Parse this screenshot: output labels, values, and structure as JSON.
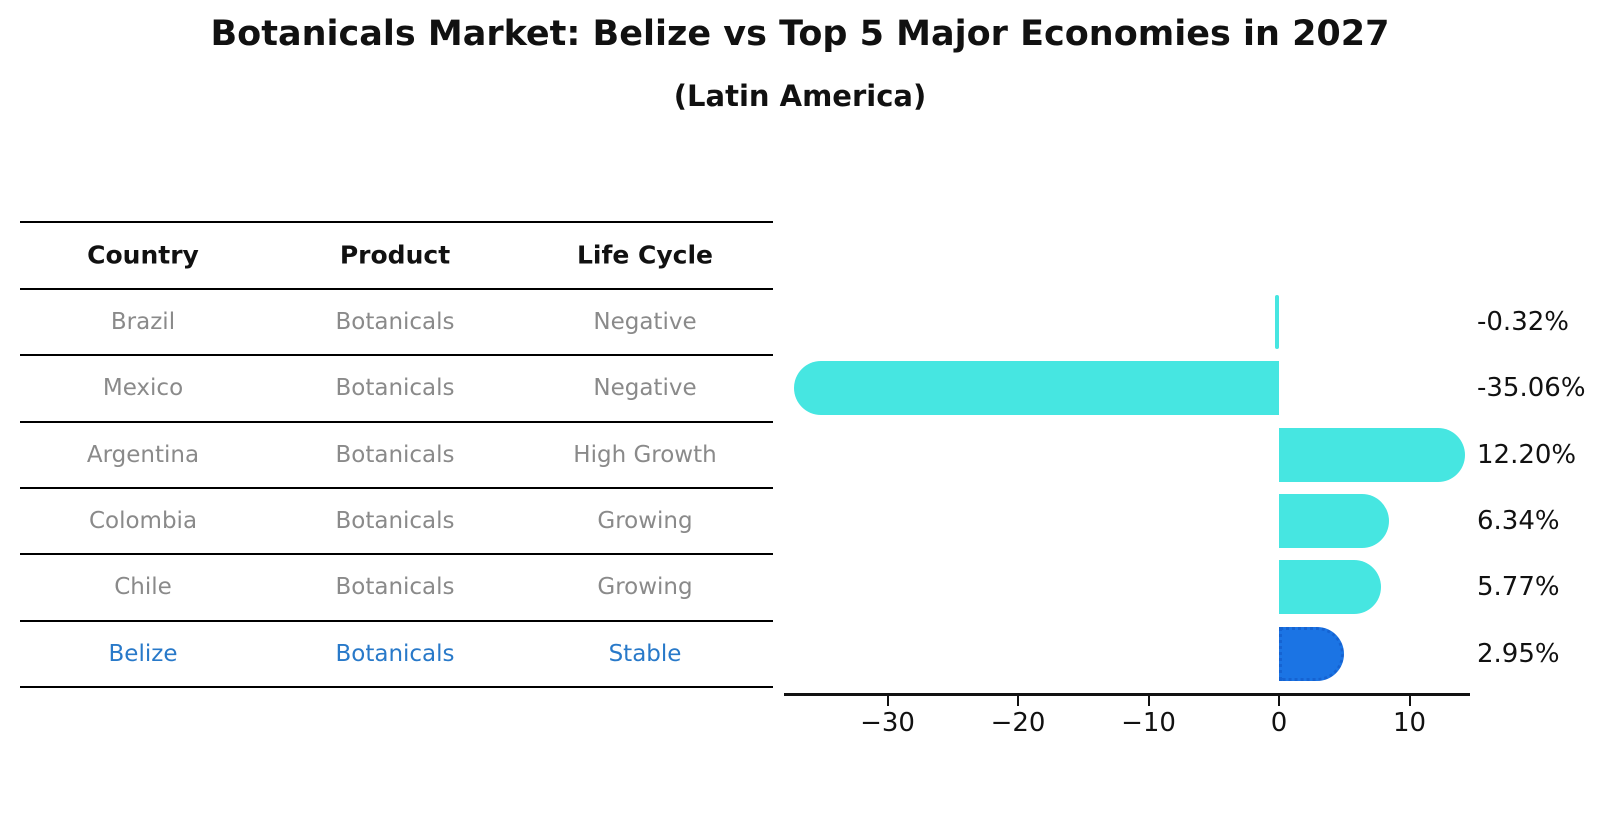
{
  "title": "Botanicals Market: Belize vs Top 5 Major Economies in 2027",
  "subtitle": "(Latin America)",
  "table": {
    "headers": [
      "Country",
      "Product",
      "Life Cycle"
    ],
    "rows": [
      {
        "country": "Brazil",
        "product": "Botanicals",
        "life_cycle": "Negative",
        "highlighted": false
      },
      {
        "country": "Mexico",
        "product": "Botanicals",
        "life_cycle": "Negative",
        "highlighted": false
      },
      {
        "country": "Argentina",
        "product": "Botanicals",
        "life_cycle": "High Growth",
        "highlighted": false
      },
      {
        "country": "Colombia",
        "product": "Botanicals",
        "life_cycle": "Growing",
        "highlighted": false
      },
      {
        "country": "Chile",
        "product": "Botanicals",
        "life_cycle": "Growing",
        "highlighted": false
      },
      {
        "country": "Belize",
        "product": "Botanicals",
        "life_cycle": "Stable",
        "highlighted": true
      }
    ]
  },
  "chart_data": {
    "type": "bar",
    "orientation": "horizontal",
    "categories": [
      "Brazil",
      "Mexico",
      "Argentina",
      "Colombia",
      "Chile",
      "Belize"
    ],
    "values": [
      -0.32,
      -35.06,
      12.2,
      6.34,
      5.77,
      2.95
    ],
    "value_labels": [
      "-0.32%",
      "-35.06%",
      "12.20%",
      "6.34%",
      "5.77%",
      "2.95%"
    ],
    "x_ticks": [
      -30,
      -20,
      -10,
      0,
      10
    ],
    "x_tick_labels": [
      "−30",
      "−20",
      "−10",
      "0",
      "10"
    ],
    "xlim": [
      -37.9,
      14.6
    ],
    "grid": false,
    "legend": false,
    "bar_color": "#46E6E1",
    "highlight_index": 5,
    "highlight_color": "#1B74E4",
    "highlight_edge_color": "#1563D2",
    "highlight_edge_style": "dotted"
  },
  "colors": {
    "text": "#111111",
    "muted_text": "#8A8A8A",
    "highlight_text": "#2879C9",
    "rule": "#000000",
    "background": "#FFFFFF"
  }
}
